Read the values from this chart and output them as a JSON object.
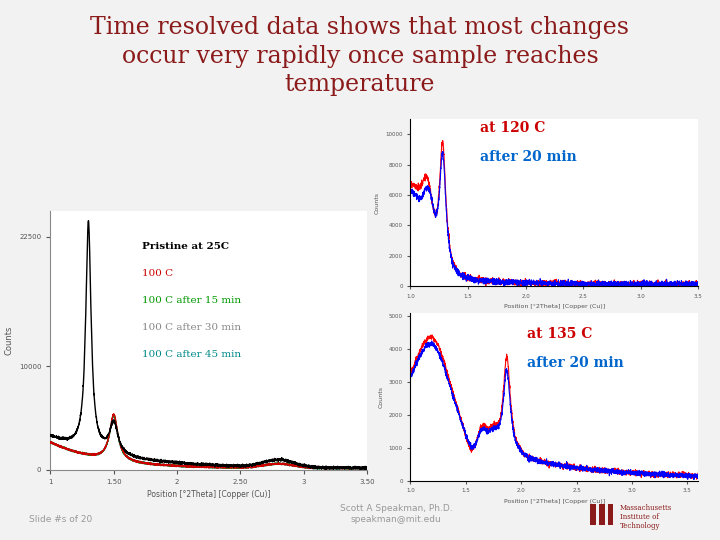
{
  "title_line1": "Time resolved data shows that most changes",
  "title_line2": "occur very rapidly once sample reaches",
  "title_line3": "temperature",
  "title_color": "#8B1A1A",
  "title_fontsize": 17,
  "background_color": "#F2F2F2",
  "slide_text": "Slide #s of 20",
  "footer_name": "Scott A Speakman, Ph.D.\nspeakman@mit.edu",
  "legend_labels": [
    "Pristine at 25C",
    "100 C",
    "100 C after 15 min",
    "100 C after 30 min",
    "100 C after 45 min"
  ],
  "legend_colors": [
    "#000000",
    "#CC0000",
    "#009900",
    "#888888",
    "#008888"
  ],
  "annot_color_red": "#CC0000",
  "annot_color_blue": "#0066CC"
}
